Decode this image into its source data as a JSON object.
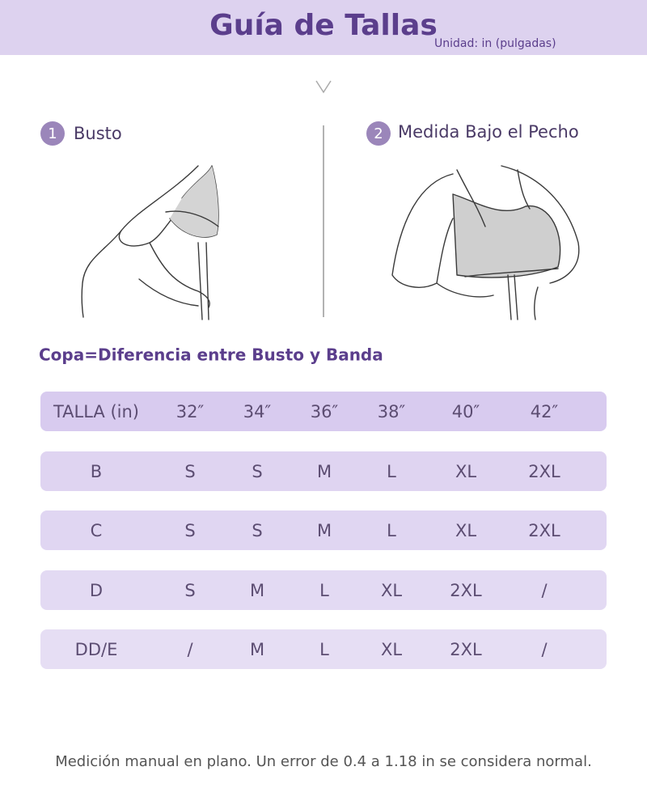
{
  "header": {
    "title": "Guía de Tallas",
    "unit": "Unidad: in (pulgadas)"
  },
  "steps": [
    {
      "number": "1",
      "label": "Busto"
    },
    {
      "number": "2",
      "label": "Medida Bajo el Pecho"
    }
  ],
  "subtitle": "Copa=Diferencia entre Busto y Banda",
  "table": {
    "header": [
      "TALLA (in)",
      "32″",
      "34″",
      "36″",
      "38″",
      "40″",
      "42″"
    ],
    "rows": [
      [
        "B",
        "S",
        "S",
        "M",
        "L",
        "XL",
        "2XL"
      ],
      [
        "C",
        "S",
        "S",
        "M",
        "L",
        "XL",
        "2XL"
      ],
      [
        "D",
        "S",
        "M",
        "L",
        "XL",
        "2XL",
        "/"
      ],
      [
        "DD/E",
        "/",
        "M",
        "L",
        "XL",
        "2XL",
        "/"
      ]
    ]
  },
  "footer": "Medición manual en plano. Un error de 0.4 a 1.18 in se considera normal."
}
